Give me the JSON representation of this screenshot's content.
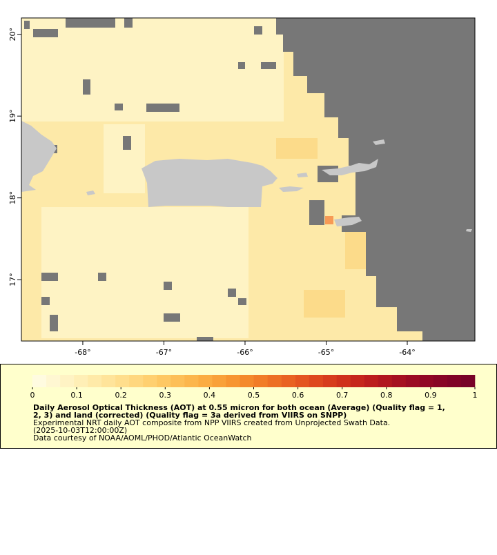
{
  "map": {
    "xlim": [
      -68.757,
      -63.166
    ],
    "ylim": [
      16.25,
      20.2
    ],
    "xticks": [
      {
        "value": -68,
        "label": "-68°"
      },
      {
        "value": -67,
        "label": "-67°"
      },
      {
        "value": -66,
        "label": "-66°"
      },
      {
        "value": -65,
        "label": "-65°"
      },
      {
        "value": -64,
        "label": "-64°"
      }
    ],
    "yticks": [
      {
        "value": 17,
        "label": "17°"
      },
      {
        "value": 18,
        "label": "18°"
      },
      {
        "value": 19,
        "label": "19°"
      },
      {
        "value": 20,
        "label": "20°"
      }
    ]
  },
  "colorbar": {
    "range": [
      0,
      1
    ],
    "ticks": [
      0,
      0.1,
      0.2,
      0.3,
      0.4,
      0.5,
      0.6,
      0.7,
      0.8,
      0.9,
      1
    ],
    "colors": [
      "#fffbe0",
      "#fff7d2",
      "#fff3c4",
      "#ffefb6",
      "#ffeaa8",
      "#ffe49a",
      "#ffde8c",
      "#ffd77e",
      "#ffd070",
      "#fec863",
      "#fdbf57",
      "#fcb64c",
      "#fbac42",
      "#f9a139",
      "#f79531",
      "#f4892b",
      "#f17c27",
      "#ed6f24",
      "#e96222",
      "#e45520",
      "#de481e",
      "#d73c1d",
      "#cf311c",
      "#c6261c",
      "#bc1d1d",
      "#b1161f",
      "#a61021",
      "#9b0b23",
      "#910725",
      "#880526",
      "#800327",
      "#780228"
    ]
  },
  "caption": {
    "title_lines": [
      "Daily Aerosol Optical Thickness (AOT) at 0.55 micron for both ocean (Average) (Quality flag = 1,",
      "2, 3) and land (corrected) (Quality flag = 3a derived from VIIRS on SNPP)"
    ],
    "lines": [
      "Experimental NRT daily AOT composite from NPP VIIRS created from Unprojected Swath Data.",
      "(2025-10-03T12:00:00Z)",
      "Data courtesy of NOAA/AOML/PHOD/Atlantic OceanWatch"
    ]
  }
}
